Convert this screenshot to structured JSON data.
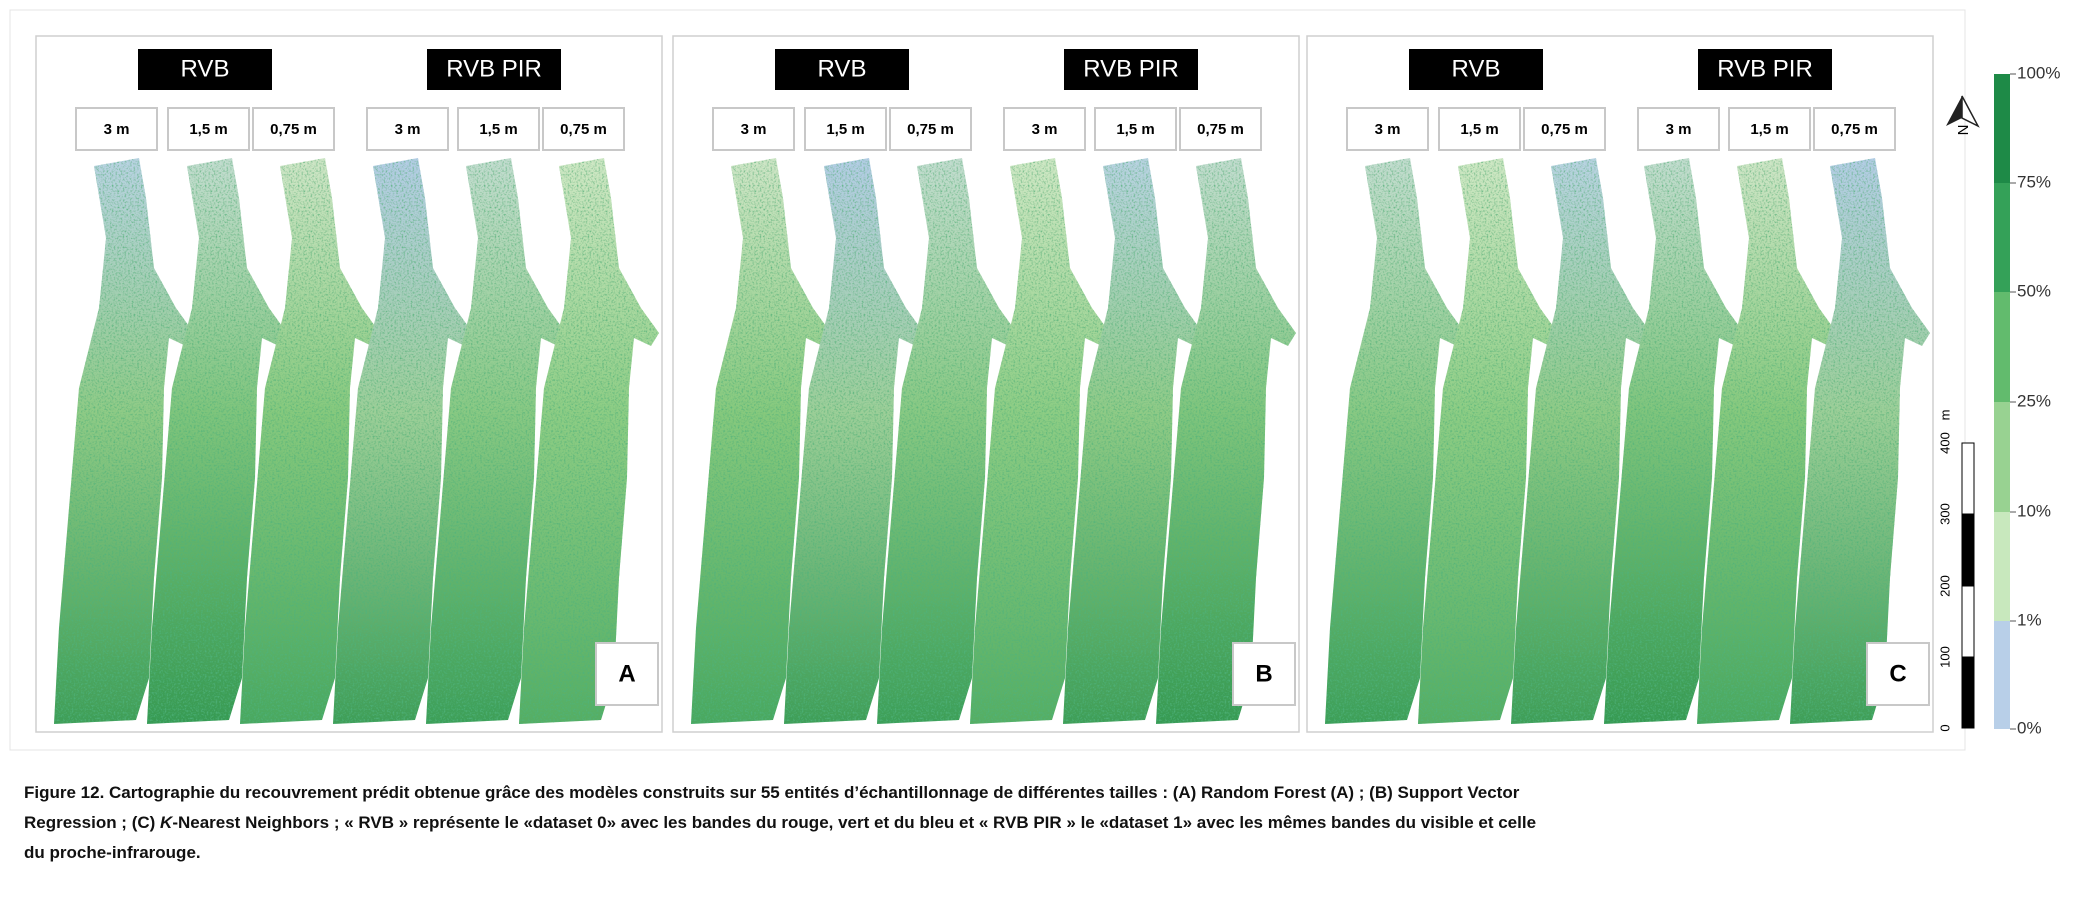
{
  "figure": {
    "panels": [
      {
        "letter": "A",
        "headers": [
          "RVB",
          "RVB PIR"
        ],
        "resolutions": [
          "3 m",
          "1,5 m",
          "0,75 m",
          "3 m",
          "1,5 m",
          "0,75 m"
        ]
      },
      {
        "letter": "B",
        "headers": [
          "RVB",
          "RVB PIR"
        ],
        "resolutions": [
          "3 m",
          "1,5 m",
          "0,75 m",
          "3 m",
          "1,5 m",
          "0,75 m"
        ]
      },
      {
        "letter": "C",
        "headers": [
          "RVB",
          "RVB PIR"
        ],
        "resolutions": [
          "3 m",
          "1,5 m",
          "0,75 m",
          "3 m",
          "1,5 m",
          "0,75 m"
        ]
      }
    ],
    "north": "N",
    "scale_bar": [
      "0",
      "100",
      "200",
      "300",
      "400",
      "m"
    ],
    "legend": [
      {
        "label": "100%",
        "color": "#1e8a47"
      },
      {
        "label": "75%",
        "color": "#34a158"
      },
      {
        "label": "50%",
        "color": "#62bb6d"
      },
      {
        "label": "25%",
        "color": "#98d291"
      },
      {
        "label": "10%",
        "color": "#c8e8bd"
      },
      {
        "label": "1%",
        "color": "#b8cfe8"
      },
      {
        "label": "0%"
      }
    ],
    "caption": [
      "Figure 12. Cartographie du recouvrement prédit obtenue grâce des modèles construits sur 55 entités d’échantillonnage de différentes tailles : (A) Random Forest (A) ; (B) Support Vector",
      "Regression ; (C) ",
      "K",
      "-Nearest Neighbors ; « RVB » représente le «dataset 0» avec les bandes du rouge, vert et du bleu et « RVB PIR » le «dataset 1» avec les mêmes bandes du visible et celle",
      "du proche-infrarouge."
    ]
  }
}
